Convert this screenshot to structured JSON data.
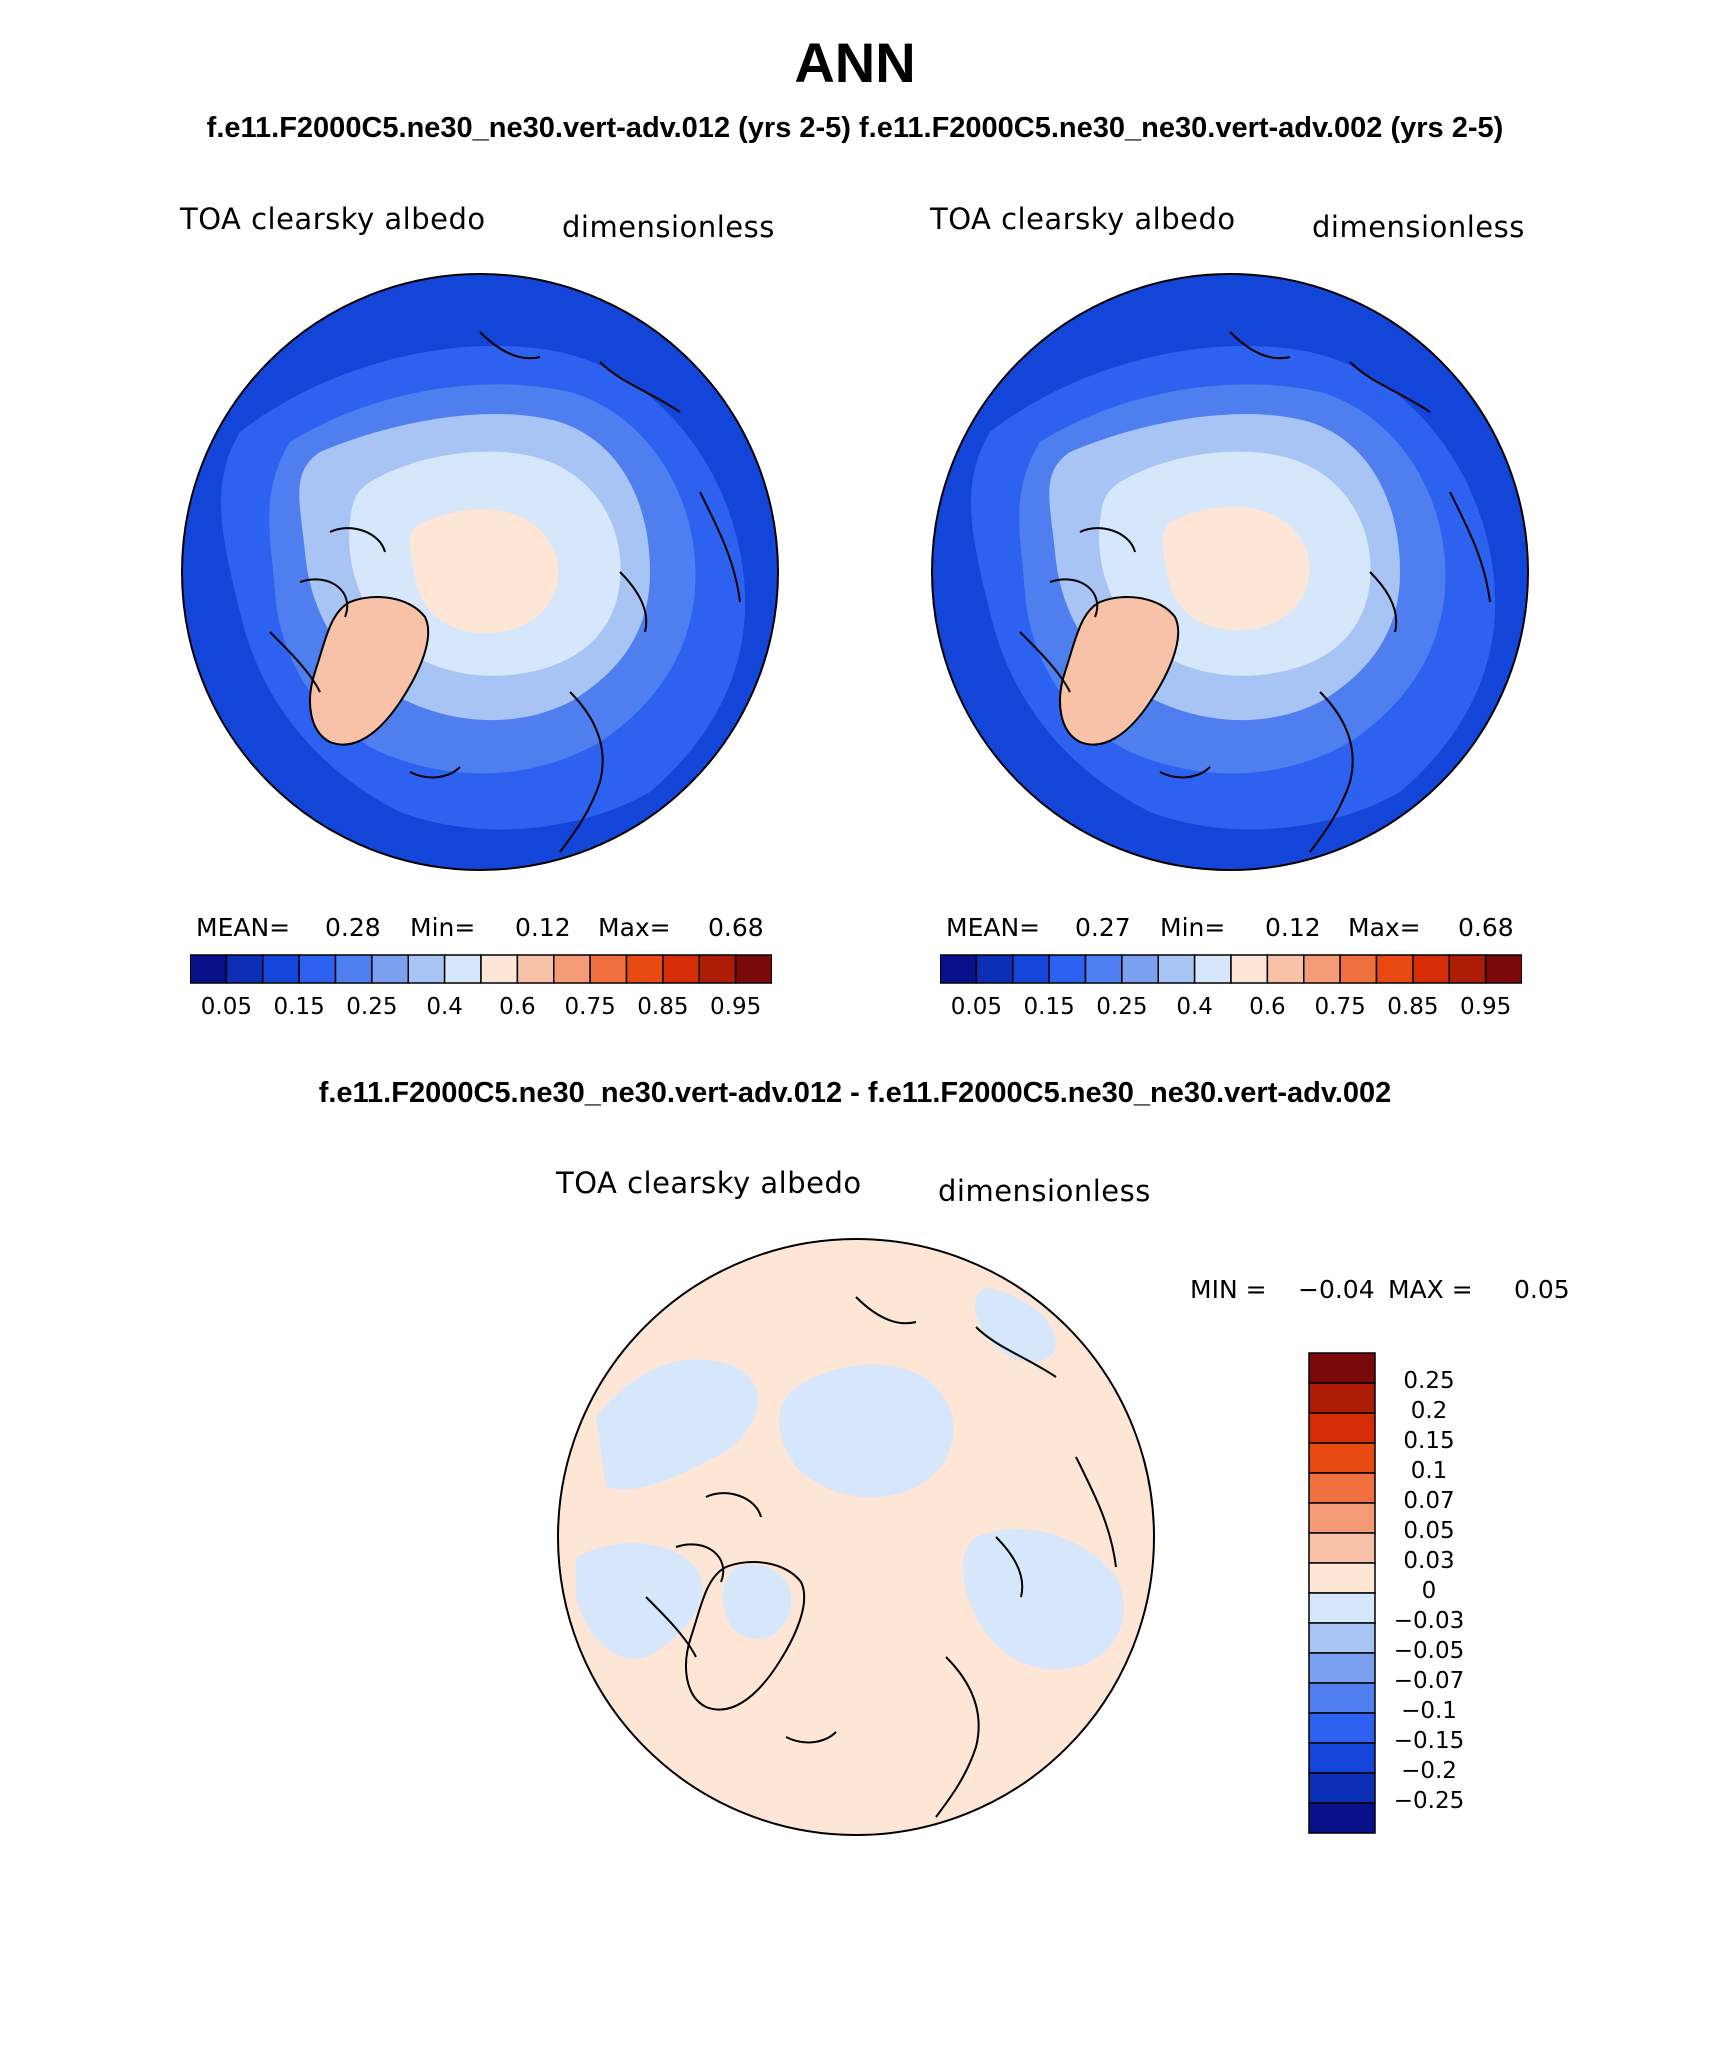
{
  "title": "ANN",
  "subtitle_top": "f.e11.F2000C5.ne30_ne30.vert-adv.012 (yrs 2-5)  f.e11.F2000C5.ne30_ne30.vert-adv.002 (yrs 2-5)",
  "subtitle_diff": "f.e11.F2000C5.ne30_ne30.vert-adv.012 - f.e11.F2000C5.ne30_ne30.vert-adv.002",
  "panels": [
    {
      "variable": "TOA clearsky albedo",
      "units": "dimensionless",
      "mean_label": "MEAN=",
      "mean": "0.28",
      "min_label": "Min=",
      "min": "0.12",
      "max_label": "Max=",
      "max": "0.68"
    },
    {
      "variable": "TOA clearsky albedo",
      "units": "dimensionless",
      "mean_label": "MEAN=",
      "mean": "0.27",
      "min_label": "Min=",
      "min": "0.12",
      "max_label": "Max=",
      "max": "0.68"
    }
  ],
  "diff_panel": {
    "variable": "TOA clearsky albedo",
    "units": "dimensionless",
    "min_label": "MIN =",
    "min": "−0.04",
    "max_label": "MAX =",
    "max": "0.05"
  },
  "colorbar_main": {
    "colors": [
      "#08108a",
      "#0a2fb4",
      "#1346d8",
      "#2d62f0",
      "#4f7fef",
      "#7ba0f0",
      "#a8c4f4",
      "#d7e7fb",
      "#fde6d6",
      "#f8c2a8",
      "#f49a76",
      "#f0703f",
      "#e84a12",
      "#d52e06",
      "#ad1d06",
      "#7a0a0a"
    ],
    "tick_labels": [
      "0.05",
      "0.15",
      "0.25",
      "0.4",
      "0.6",
      "0.75",
      "0.85",
      "0.95"
    ]
  },
  "colorbar_diff": {
    "colors_top_to_bottom": [
      "#7a0a0a",
      "#ad1d06",
      "#d52e06",
      "#e84a12",
      "#f0703f",
      "#f49a76",
      "#f8c2a8",
      "#fde6d6",
      "#d7e7fb",
      "#a8c4f4",
      "#7ba0f0",
      "#4f7fef",
      "#2d62f0",
      "#1346d8",
      "#0a2fb4",
      "#08108a"
    ],
    "tick_labels_top_to_bottom": [
      "0.25",
      "0.2",
      "0.15",
      "0.1",
      "0.07",
      "0.05",
      "0.03",
      "0",
      "−0.03",
      "−0.05",
      "−0.07",
      "−0.1",
      "−0.15",
      "−0.2",
      "−0.25"
    ]
  },
  "map_colors": {
    "ocean_deep": "#1346d8",
    "ocean_mid": "#2d62f0",
    "ocean_light": "#4f7fef",
    "ice_light": "#a8c4f4",
    "ice_pale": "#d7e7fb",
    "snow": "#fde6d6",
    "greenland": "#f8c2a8",
    "diff_positive": "#fde6d6",
    "diff_negative": "#d7e7fb"
  }
}
